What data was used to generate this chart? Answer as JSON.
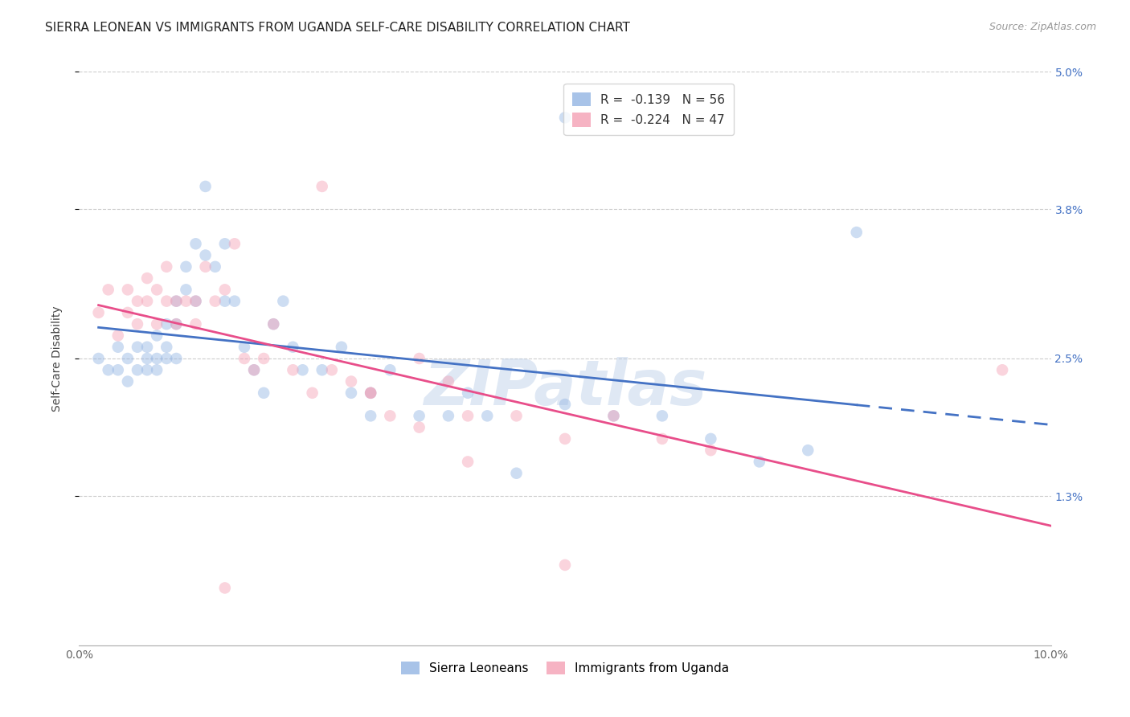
{
  "title": "SIERRA LEONEAN VS IMMIGRANTS FROM UGANDA SELF-CARE DISABILITY CORRELATION CHART",
  "source": "Source: ZipAtlas.com",
  "ylabel": "Self-Care Disability",
  "xlim": [
    0.0,
    0.1
  ],
  "ylim": [
    0.0,
    0.05
  ],
  "ytick_labels_right": [
    "5.0%",
    "3.8%",
    "2.5%",
    "1.3%"
  ],
  "yticks_right": [
    0.05,
    0.038,
    0.025,
    0.013
  ],
  "legend_color1": "#92b4e3",
  "legend_color2": "#f4a0b5",
  "watermark": "ZIPatlas",
  "blue_scatter_x": [
    0.002,
    0.003,
    0.004,
    0.004,
    0.005,
    0.005,
    0.006,
    0.006,
    0.007,
    0.007,
    0.007,
    0.008,
    0.008,
    0.008,
    0.009,
    0.009,
    0.009,
    0.01,
    0.01,
    0.01,
    0.011,
    0.011,
    0.012,
    0.012,
    0.013,
    0.013,
    0.014,
    0.015,
    0.015,
    0.016,
    0.017,
    0.018,
    0.019,
    0.02,
    0.021,
    0.022,
    0.023,
    0.025,
    0.027,
    0.028,
    0.03,
    0.032,
    0.035,
    0.038,
    0.04,
    0.042,
    0.045,
    0.05,
    0.055,
    0.06,
    0.065,
    0.07,
    0.075,
    0.08,
    0.05,
    0.03
  ],
  "blue_scatter_y": [
    0.025,
    0.024,
    0.026,
    0.024,
    0.025,
    0.023,
    0.026,
    0.024,
    0.026,
    0.025,
    0.024,
    0.027,
    0.025,
    0.024,
    0.028,
    0.026,
    0.025,
    0.03,
    0.028,
    0.025,
    0.033,
    0.031,
    0.035,
    0.03,
    0.04,
    0.034,
    0.033,
    0.035,
    0.03,
    0.03,
    0.026,
    0.024,
    0.022,
    0.028,
    0.03,
    0.026,
    0.024,
    0.024,
    0.026,
    0.022,
    0.022,
    0.024,
    0.02,
    0.02,
    0.022,
    0.02,
    0.015,
    0.021,
    0.02,
    0.02,
    0.018,
    0.016,
    0.017,
    0.036,
    0.046,
    0.02
  ],
  "pink_scatter_x": [
    0.002,
    0.003,
    0.004,
    0.005,
    0.005,
    0.006,
    0.006,
    0.007,
    0.007,
    0.008,
    0.008,
    0.009,
    0.009,
    0.01,
    0.01,
    0.011,
    0.012,
    0.012,
    0.013,
    0.014,
    0.015,
    0.016,
    0.017,
    0.018,
    0.019,
    0.02,
    0.022,
    0.024,
    0.026,
    0.028,
    0.03,
    0.032,
    0.035,
    0.038,
    0.04,
    0.045,
    0.05,
    0.055,
    0.06,
    0.065,
    0.03,
    0.025,
    0.035,
    0.04,
    0.05,
    0.095,
    0.015
  ],
  "pink_scatter_y": [
    0.029,
    0.031,
    0.027,
    0.031,
    0.029,
    0.03,
    0.028,
    0.032,
    0.03,
    0.031,
    0.028,
    0.033,
    0.03,
    0.03,
    0.028,
    0.03,
    0.03,
    0.028,
    0.033,
    0.03,
    0.031,
    0.035,
    0.025,
    0.024,
    0.025,
    0.028,
    0.024,
    0.022,
    0.024,
    0.023,
    0.022,
    0.02,
    0.025,
    0.023,
    0.02,
    0.02,
    0.018,
    0.02,
    0.018,
    0.017,
    0.022,
    0.04,
    0.019,
    0.016,
    0.007,
    0.024,
    0.005
  ],
  "scatter_size": 110,
  "scatter_alpha": 0.45,
  "line_color_blue": "#4472c4",
  "line_color_pink": "#e84e8a",
  "blue_line_x_start": 0.002,
  "blue_line_x_solid_end": 0.08,
  "blue_line_x_dash_end": 0.1,
  "pink_line_x_start": 0.002,
  "pink_line_x_end": 0.1,
  "background_color": "#ffffff",
  "title_fontsize": 11,
  "axis_label_fontsize": 10,
  "tick_fontsize": 10,
  "legend1_label": "R =  -0.139   N = 56",
  "legend2_label": "R =  -0.224   N = 47",
  "bottom_legend1": "Sierra Leoneans",
  "bottom_legend2": "Immigrants from Uganda"
}
